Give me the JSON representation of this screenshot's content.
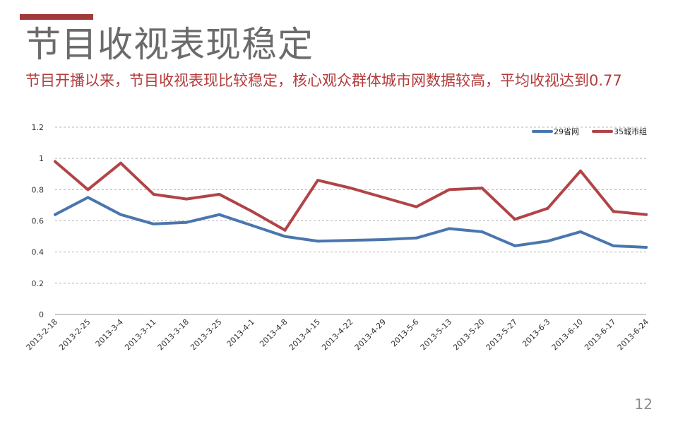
{
  "slide": {
    "title": "节目收视表现稳定",
    "subtitle": "节目开播以来，节目收视表现比较稳定，核心观众群体城市网数据较高，平均收视达到0.77",
    "page_number": "12"
  },
  "colors": {
    "accent": "#A0393A",
    "series_blue": "#4A76AE",
    "series_red": "#B04446",
    "grid": "#b5b5b5"
  },
  "chart_data": {
    "type": "line",
    "title": "",
    "xlabel": "",
    "ylabel": "",
    "ylim": [
      0,
      1.2
    ],
    "yticks": [
      "0",
      "0.2",
      "0.4",
      "0.6",
      "0.8",
      "1",
      "1.2"
    ],
    "grid": true,
    "legend_position": "top-right",
    "categories": [
      "2013-2-18",
      "2013-2-25",
      "2013-3-4",
      "2013-3-11",
      "2013-3-18",
      "2013-3-25",
      "2013-4-1",
      "2013-4-8",
      "2013-4-15",
      "2013-4-22",
      "2013-4-29",
      "2013-5-6",
      "2013-5-13",
      "2013-5-20",
      "2013-5-27",
      "2013-6-3",
      "2013-6-10",
      "2013-6-17",
      "2013-6-24"
    ],
    "series": [
      {
        "name": "29省网",
        "color": "#4A76AE",
        "values": [
          0.64,
          0.75,
          0.64,
          0.58,
          0.59,
          0.64,
          0.57,
          0.5,
          0.47,
          0.475,
          0.48,
          0.49,
          0.55,
          0.53,
          0.44,
          0.47,
          0.53,
          0.44,
          0.43
        ]
      },
      {
        "name": "35城市组",
        "color": "#B04446",
        "values": [
          0.98,
          0.8,
          0.97,
          0.77,
          0.74,
          0.77,
          0.66,
          0.54,
          0.86,
          0.81,
          0.75,
          0.69,
          0.8,
          0.81,
          0.61,
          0.68,
          0.92,
          0.66,
          0.64
        ]
      }
    ]
  }
}
